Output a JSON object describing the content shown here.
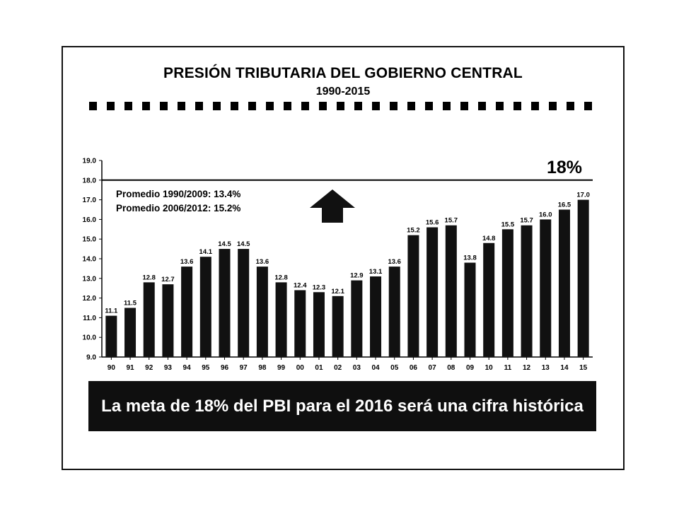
{
  "title": "PRESIÓN TRIBUTARIA DEL GOBIERNO CENTRAL",
  "subtitle": "1990-2015",
  "banner_text": "La meta de 18% del PBI para el 2016 será una cifra histórica",
  "chart_data": {
    "type": "bar",
    "categories": [
      "90",
      "91",
      "92",
      "93",
      "94",
      "95",
      "96",
      "97",
      "98",
      "99",
      "00",
      "01",
      "02",
      "03",
      "04",
      "05",
      "06",
      "07",
      "08",
      "09",
      "10",
      "11",
      "12",
      "13",
      "14",
      "15"
    ],
    "values": [
      11.1,
      11.5,
      12.8,
      12.7,
      13.6,
      14.1,
      14.5,
      14.5,
      13.6,
      12.8,
      12.4,
      12.3,
      12.1,
      12.9,
      13.1,
      13.6,
      15.2,
      15.6,
      15.7,
      13.8,
      14.8,
      15.5,
      15.7,
      16.0,
      16.5,
      17.0
    ],
    "value_labels": [
      "11.1",
      "11.5",
      "12.8",
      "12.7",
      "13.6",
      "14.1",
      "14.5",
      "14.5",
      "13.6",
      "12.8",
      "12.4",
      "12.3",
      "12.1",
      "12.9",
      "13.1",
      "13.6",
      "15.2",
      "15.6",
      "15.7",
      "13.8",
      "14.8",
      "15.5",
      "15.7",
      "16.0",
      "16.5",
      "17.0"
    ],
    "ylim": [
      9.0,
      19.0
    ],
    "yticks": [
      "9.0",
      "10.0",
      "11.0",
      "12.0",
      "13.0",
      "14.0",
      "15.0",
      "16.0",
      "17.0",
      "18.0",
      "19.0"
    ],
    "reference_line": {
      "value": 18.0,
      "label": "18%"
    },
    "annotations": [
      "Promedio 1990/2009:  13.4%",
      "Promedio 2006/2012:  15.2%"
    ],
    "grid": false,
    "colors": {
      "bar": "#111111",
      "axis": "#000000"
    }
  }
}
